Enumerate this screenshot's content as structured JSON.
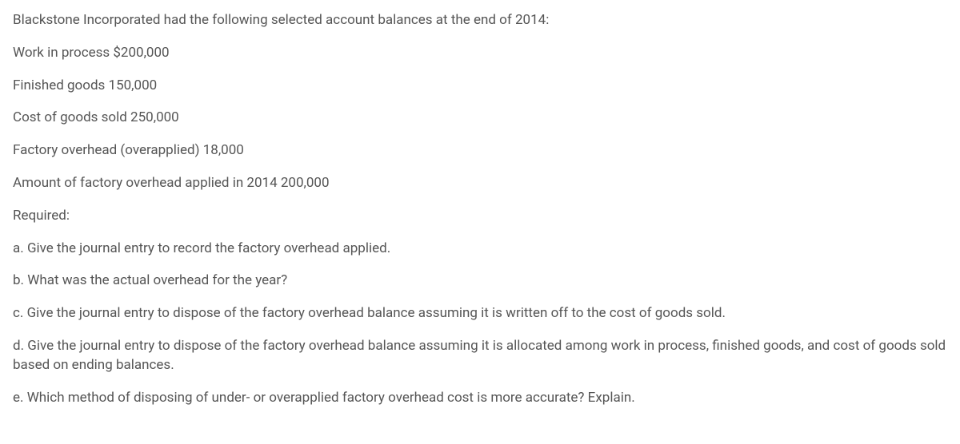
{
  "text_color": "#555555",
  "background_color": "#ffffff",
  "font_size": 17,
  "line_spacing": 17,
  "lines": {
    "intro": "Blackstone Incorporated had the following selected account balances at the end of 2014:",
    "wip": "Work in process $200,000",
    "fg": "Finished goods 150,000",
    "cogs": "Cost of goods sold 250,000",
    "foh_over": "Factory overhead (overapplied) 18,000",
    "foh_applied": "Amount of factory overhead applied in 2014 200,000",
    "required": "Required:",
    "a": "a. Give the journal entry to record the factory overhead applied.",
    "b": "b. What was the actual overhead for the year?",
    "c": "c. Give the journal entry to dispose of the factory overhead balance assuming it is written off to the cost of goods sold.",
    "d": "d. Give the journal entry to dispose of the factory overhead balance assuming it is allocated among work in process, finished goods, and cost of goods sold based on ending balances.",
    "e": "e. Which method of disposing of under- or overapplied factory overhead cost is more accurate? Explain."
  }
}
